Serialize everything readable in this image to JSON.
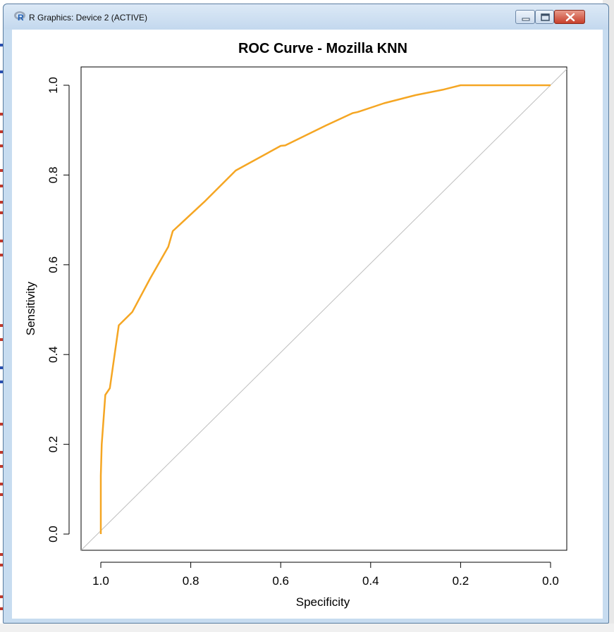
{
  "window": {
    "title": "R Graphics: Device 2 (ACTIVE)",
    "buttons": [
      "minimize",
      "maximize",
      "close"
    ]
  },
  "chart_data": {
    "type": "line",
    "title": "ROC Curve - Mozilla KNN",
    "xlabel": "Specificity",
    "ylabel": "Sensitivity",
    "xlim": [
      1.0,
      0.0
    ],
    "ylim": [
      0.0,
      1.0
    ],
    "x_ticks": [
      "1.0",
      "0.8",
      "0.6",
      "0.4",
      "0.2",
      "0.0"
    ],
    "y_ticks": [
      "0.0",
      "0.2",
      "0.4",
      "0.6",
      "0.8",
      "1.0"
    ],
    "series": [
      {
        "name": "ROC",
        "color": "#f5a623",
        "x": [
          1.0,
          1.0,
          0.998,
          0.99,
          0.98,
          0.96,
          0.93,
          0.89,
          0.85,
          0.84,
          0.77,
          0.7,
          0.6,
          0.59,
          0.5,
          0.44,
          0.43,
          0.37,
          0.3,
          0.24,
          0.2,
          0.15,
          0.05,
          0.0
        ],
        "y": [
          0.0,
          0.13,
          0.2,
          0.31,
          0.325,
          0.465,
          0.495,
          0.57,
          0.64,
          0.675,
          0.74,
          0.81,
          0.865,
          0.866,
          0.91,
          0.938,
          0.94,
          0.96,
          0.978,
          0.99,
          1.0,
          1.0,
          1.0,
          1.0
        ]
      }
    ],
    "reference_line": {
      "color": "#bdbdbd",
      "from": [
        1.0,
        0.0
      ],
      "to": [
        0.0,
        1.0
      ]
    }
  }
}
